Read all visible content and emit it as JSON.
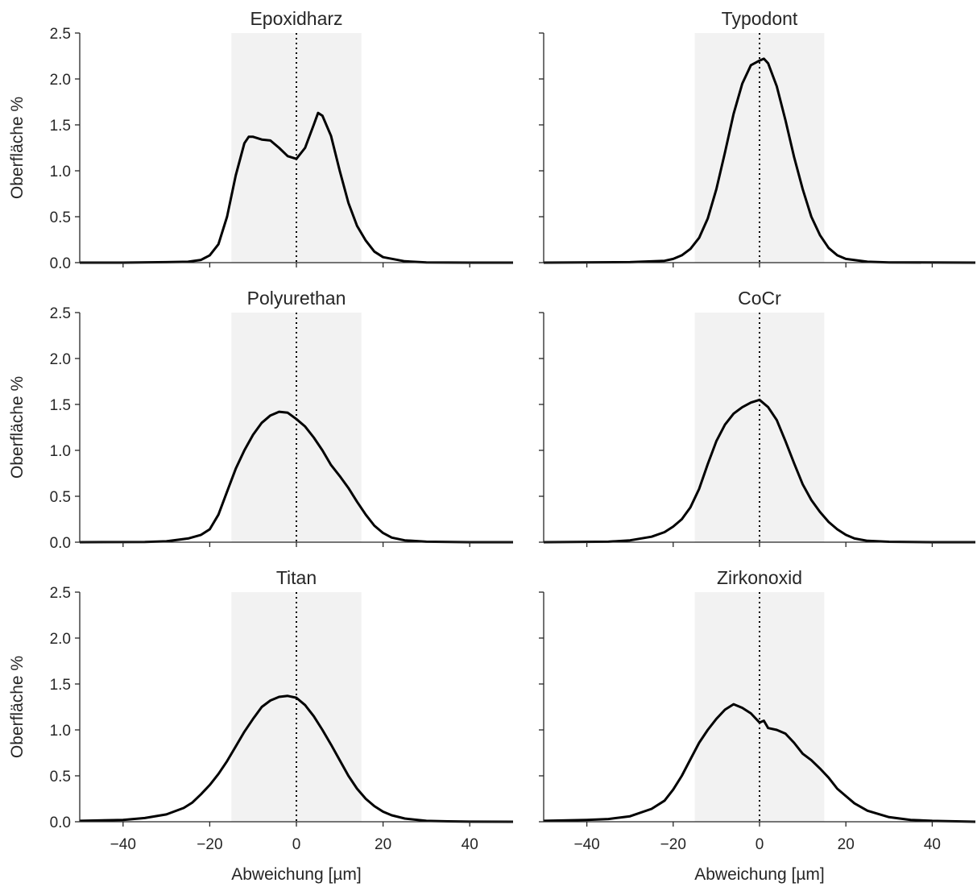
{
  "chart_data": [
    {
      "type": "line",
      "title": "Epoxidharz",
      "ylabel": "Oberfläche %",
      "xlabel": "",
      "xlim": [
        -50,
        50
      ],
      "ylim": [
        0,
        2.5
      ],
      "shaded_range": [
        -15,
        15
      ],
      "reference_line_x": 0,
      "x": [
        -50,
        -40,
        -30,
        -25,
        -22,
        -20,
        -18,
        -16,
        -14,
        -12,
        -11,
        -10,
        -8,
        -6,
        -4,
        -2,
        0,
        2,
        4,
        5,
        6,
        8,
        10,
        12,
        14,
        16,
        18,
        20,
        25,
        30,
        40,
        50
      ],
      "y": [
        0,
        0,
        0.005,
        0.01,
        0.03,
        0.08,
        0.2,
        0.5,
        0.95,
        1.3,
        1.37,
        1.37,
        1.34,
        1.33,
        1.25,
        1.16,
        1.13,
        1.25,
        1.5,
        1.63,
        1.6,
        1.38,
        1.0,
        0.65,
        0.4,
        0.24,
        0.12,
        0.06,
        0.015,
        0.003,
        0,
        0
      ]
    },
    {
      "type": "line",
      "title": "Typodont",
      "ylabel": "",
      "xlabel": "",
      "xlim": [
        -50,
        50
      ],
      "ylim": [
        0,
        2.5
      ],
      "shaded_range": [
        -15,
        15
      ],
      "reference_line_x": 0,
      "x": [
        -50,
        -30,
        -22,
        -20,
        -18,
        -16,
        -14,
        -12,
        -10,
        -8,
        -6,
        -4,
        -2,
        0,
        1,
        2,
        4,
        6,
        8,
        10,
        12,
        14,
        16,
        18,
        20,
        25,
        30,
        50
      ],
      "y": [
        0,
        0.005,
        0.02,
        0.04,
        0.08,
        0.15,
        0.27,
        0.48,
        0.8,
        1.2,
        1.62,
        1.95,
        2.15,
        2.2,
        2.22,
        2.17,
        1.92,
        1.55,
        1.15,
        0.8,
        0.5,
        0.3,
        0.16,
        0.08,
        0.04,
        0.01,
        0.003,
        0
      ]
    },
    {
      "type": "line",
      "title": "Polyurethan",
      "ylabel": "Oberfläche %",
      "xlabel": "",
      "xlim": [
        -50,
        50
      ],
      "ylim": [
        0,
        2.5
      ],
      "shaded_range": [
        -15,
        15
      ],
      "reference_line_x": 0,
      "x": [
        -50,
        -35,
        -30,
        -25,
        -22,
        -20,
        -18,
        -16,
        -14,
        -12,
        -10,
        -8,
        -6,
        -4,
        -2,
        0,
        2,
        4,
        6,
        8,
        10,
        12,
        14,
        16,
        18,
        20,
        22,
        25,
        30,
        40,
        50
      ],
      "y": [
        0,
        0.003,
        0.01,
        0.04,
        0.08,
        0.14,
        0.3,
        0.55,
        0.8,
        1.0,
        1.17,
        1.3,
        1.38,
        1.42,
        1.41,
        1.34,
        1.26,
        1.14,
        1.0,
        0.84,
        0.72,
        0.59,
        0.44,
        0.3,
        0.18,
        0.1,
        0.05,
        0.02,
        0.005,
        0,
        0
      ]
    },
    {
      "type": "line",
      "title": "CoCr",
      "ylabel": "",
      "xlabel": "",
      "xlim": [
        -50,
        50
      ],
      "ylim": [
        0,
        2.5
      ],
      "shaded_range": [
        -15,
        15
      ],
      "reference_line_x": 0,
      "x": [
        -50,
        -35,
        -30,
        -25,
        -22,
        -20,
        -18,
        -16,
        -14,
        -12,
        -10,
        -8,
        -6,
        -4,
        -2,
        0,
        2,
        4,
        6,
        8,
        10,
        12,
        14,
        16,
        18,
        20,
        22,
        25,
        30,
        40,
        50
      ],
      "y": [
        0,
        0.005,
        0.02,
        0.06,
        0.11,
        0.17,
        0.25,
        0.38,
        0.58,
        0.85,
        1.1,
        1.28,
        1.4,
        1.47,
        1.52,
        1.55,
        1.47,
        1.33,
        1.1,
        0.86,
        0.63,
        0.46,
        0.33,
        0.22,
        0.14,
        0.08,
        0.04,
        0.015,
        0.004,
        0,
        0
      ]
    },
    {
      "type": "line",
      "title": "Titan",
      "ylabel": "Oberfläche %",
      "xlabel": "Abweichung [µm]",
      "xlim": [
        -50,
        50
      ],
      "ylim": [
        0,
        2.5
      ],
      "shaded_range": [
        -15,
        15
      ],
      "reference_line_x": 0,
      "x": [
        -50,
        -40,
        -35,
        -30,
        -26,
        -24,
        -22,
        -20,
        -18,
        -16,
        -14,
        -12,
        -10,
        -8,
        -6,
        -4,
        -2,
        0,
        2,
        4,
        6,
        8,
        10,
        12,
        14,
        16,
        18,
        20,
        22,
        25,
        30,
        35,
        40,
        50
      ],
      "y": [
        0.01,
        0.02,
        0.04,
        0.08,
        0.15,
        0.21,
        0.3,
        0.4,
        0.52,
        0.66,
        0.82,
        0.98,
        1.12,
        1.25,
        1.32,
        1.36,
        1.37,
        1.35,
        1.27,
        1.15,
        1.0,
        0.84,
        0.67,
        0.5,
        0.36,
        0.25,
        0.17,
        0.11,
        0.07,
        0.035,
        0.01,
        0.004,
        0.001,
        0
      ]
    },
    {
      "type": "line",
      "title": "Zirkonoxid",
      "ylabel": "",
      "xlabel": "Abweichung [µm]",
      "xlim": [
        -50,
        50
      ],
      "ylim": [
        0,
        2.5
      ],
      "shaded_range": [
        -15,
        15
      ],
      "reference_line_x": 0,
      "x": [
        -50,
        -40,
        -35,
        -30,
        -25,
        -22,
        -20,
        -18,
        -16,
        -14,
        -12,
        -10,
        -8,
        -6,
        -4,
        -2,
        0,
        1,
        2,
        4,
        6,
        8,
        10,
        12,
        14,
        16,
        18,
        20,
        22,
        25,
        30,
        35,
        40,
        50
      ],
      "y": [
        0.01,
        0.02,
        0.03,
        0.06,
        0.14,
        0.23,
        0.35,
        0.5,
        0.68,
        0.86,
        1.0,
        1.12,
        1.22,
        1.28,
        1.24,
        1.18,
        1.08,
        1.1,
        1.02,
        1.0,
        0.96,
        0.86,
        0.74,
        0.67,
        0.58,
        0.48,
        0.36,
        0.28,
        0.2,
        0.12,
        0.05,
        0.02,
        0.01,
        0
      ]
    }
  ],
  "axes": {
    "x_ticks": [
      -40,
      -20,
      0,
      20,
      40
    ],
    "y_ticks": [
      0.0,
      0.5,
      1.0,
      1.5,
      2.0,
      2.5
    ],
    "x_tick_labels": [
      "−40",
      "−20",
      "0",
      "20",
      "40"
    ],
    "y_tick_labels": [
      "0.0",
      "0.5",
      "1.0",
      "1.5",
      "2.0",
      "2.5"
    ]
  },
  "colors": {
    "curve": "#000000",
    "shade": "#f2f2f2",
    "axis": "#262626"
  }
}
